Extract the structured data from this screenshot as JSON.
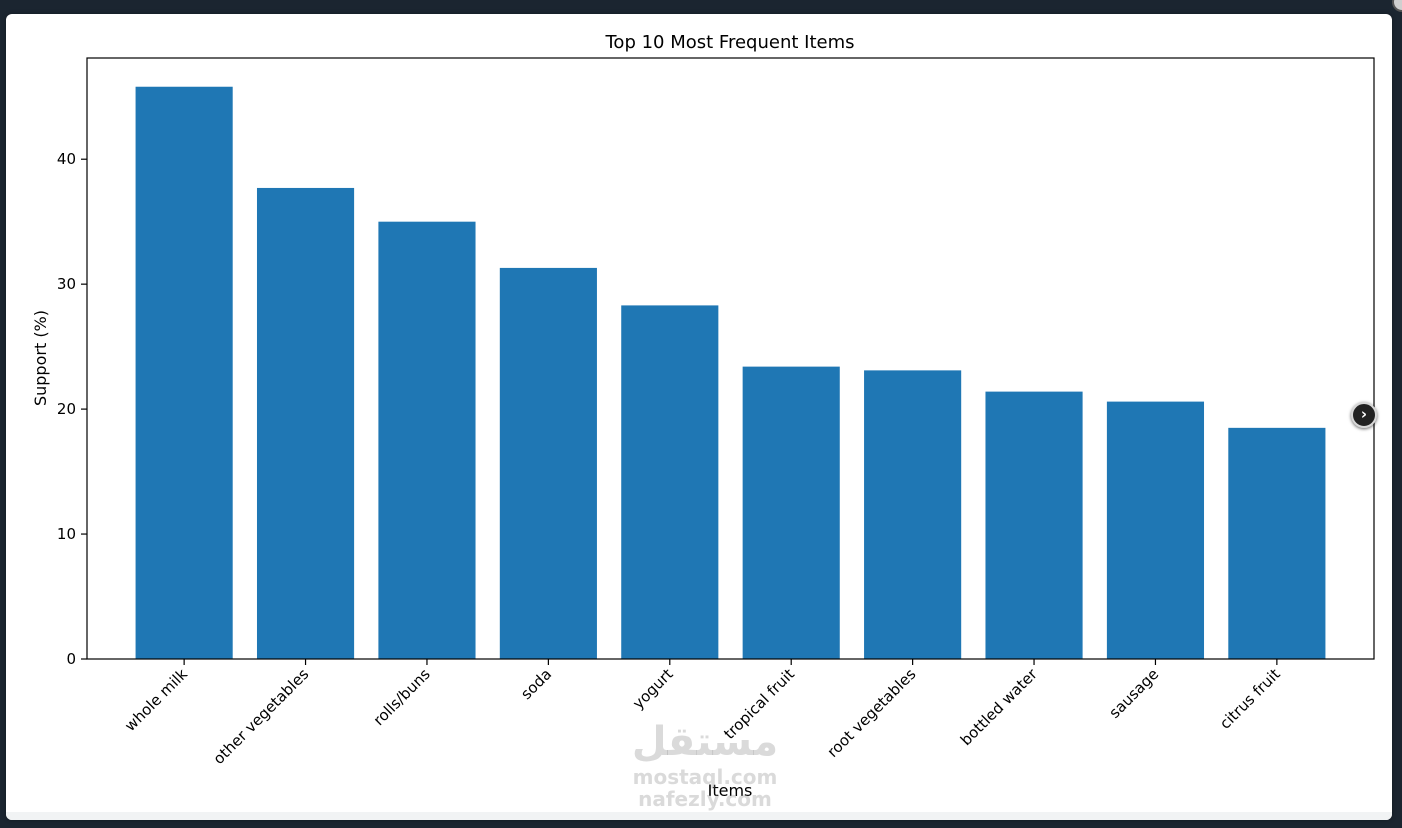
{
  "viewer": {
    "next_icon": "chevron-right-icon",
    "watermark": {
      "arabic": "مستقل",
      "line1": "mostaql.com",
      "line2": "nafezly.com"
    }
  },
  "colors": {
    "bar": "#1f77b4",
    "background": "#ffffff",
    "axis": "#000000"
  },
  "chart_data": {
    "type": "bar",
    "title": "Top 10 Most Frequent Items",
    "xlabel": "Items",
    "ylabel": "Support (%)",
    "categories": [
      "whole milk",
      "other vegetables",
      "rolls/buns",
      "soda",
      "yogurt",
      "tropical fruit",
      "root vegetables",
      "bottled water",
      "sausage",
      "citrus fruit"
    ],
    "values": [
      45.8,
      37.7,
      35.0,
      31.3,
      28.3,
      23.4,
      23.1,
      21.4,
      20.6,
      18.5
    ],
    "ylim": [
      0,
      48.1
    ],
    "yticks": [
      0,
      10,
      20,
      30,
      40
    ],
    "grid": false,
    "legend": "none"
  }
}
